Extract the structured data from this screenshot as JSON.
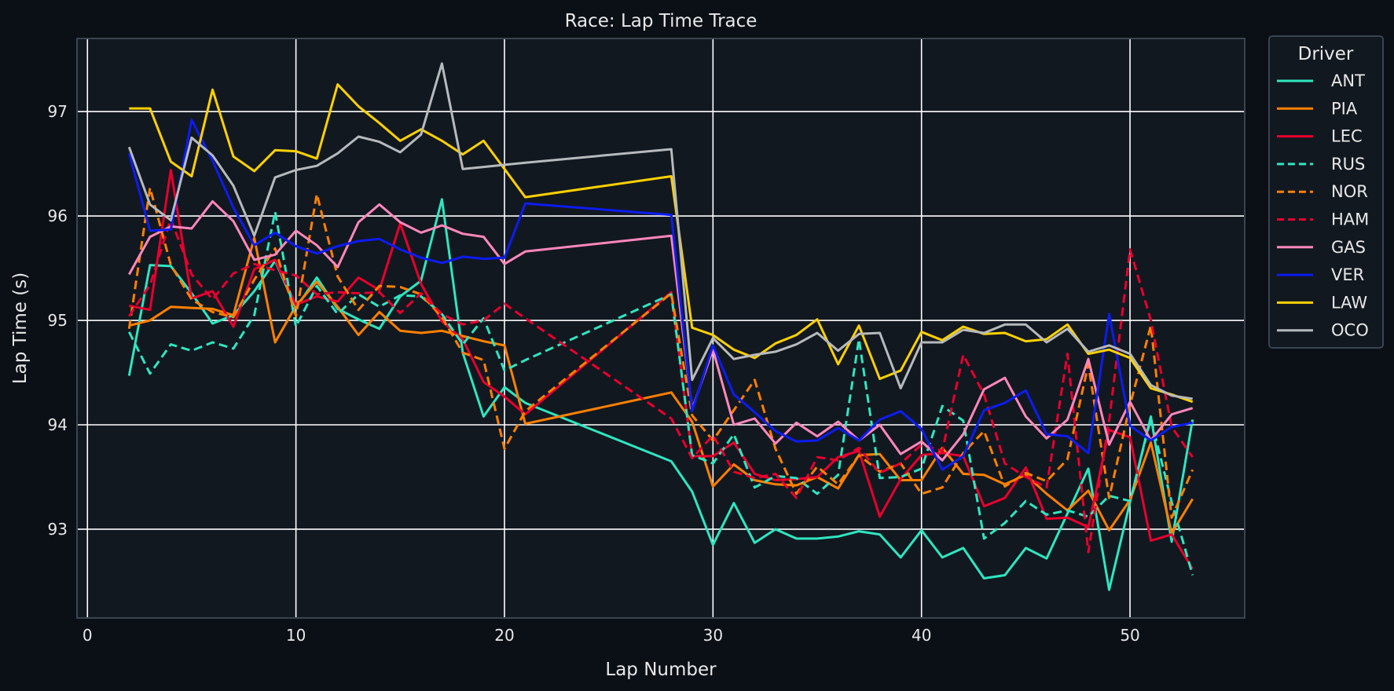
{
  "colors": {
    "background": "#0b0f16",
    "plot_bg": "#121820",
    "frame": "#3a4450",
    "grid": "#ffffff",
    "text": "#e8e8e8"
  },
  "chart_data": {
    "type": "line",
    "title": "Race: Lap Time Trace",
    "xlabel": "Lap Number",
    "ylabel": "Lap Time (s)",
    "xlim": [
      -0.5,
      55.5
    ],
    "ylim": [
      92.15,
      97.7
    ],
    "xticks": [
      0,
      10,
      20,
      30,
      40,
      50
    ],
    "yticks": [
      93,
      94,
      95,
      96,
      97
    ],
    "grid": true,
    "legend": {
      "title": "Driver",
      "placement": "outside-right-top"
    },
    "series": [
      {
        "name": "ANT",
        "color": "#2ee6c0",
        "dash": false,
        "x": [
          2,
          3,
          4,
          5,
          6,
          7,
          8,
          9,
          10,
          11,
          12,
          13,
          14,
          15,
          16,
          17,
          18,
          19,
          20,
          21,
          28,
          29,
          30,
          31,
          32,
          33,
          34,
          35,
          36,
          37,
          38,
          39,
          40,
          41,
          42,
          43,
          44,
          45,
          46,
          47,
          48,
          49,
          50,
          51,
          52,
          53
        ],
        "y": [
          94.47,
          95.53,
          95.52,
          95.26,
          94.97,
          95.05,
          95.28,
          95.57,
          95.12,
          95.41,
          95.11,
          95.01,
          94.92,
          95.23,
          95.38,
          96.16,
          94.69,
          94.08,
          94.36,
          94.21,
          93.65,
          93.36,
          92.85,
          93.25,
          92.87,
          93.0,
          92.91,
          92.91,
          92.93,
          92.98,
          92.95,
          92.73,
          92.99,
          92.73,
          92.82,
          92.53,
          92.56,
          92.82,
          92.72,
          93.15,
          93.58,
          92.42,
          93.26,
          94.08,
          92.88,
          94.05
        ]
      },
      {
        "name": "PIA",
        "color": "#ff8000",
        "dash": false,
        "x": [
          2,
          3,
          4,
          5,
          6,
          7,
          8,
          9,
          10,
          11,
          12,
          13,
          14,
          15,
          16,
          17,
          18,
          19,
          20,
          21,
          28,
          29,
          30,
          31,
          32,
          33,
          34,
          35,
          36,
          37,
          38,
          39,
          40,
          41,
          42,
          43,
          44,
          45,
          46,
          47,
          48,
          49,
          50,
          51,
          52,
          53
        ],
        "y": [
          94.95,
          95.0,
          95.13,
          95.12,
          95.11,
          95.05,
          95.79,
          94.79,
          95.14,
          95.37,
          95.13,
          94.86,
          95.08,
          94.9,
          94.88,
          94.9,
          94.85,
          94.8,
          94.76,
          94.01,
          94.31,
          94.03,
          93.41,
          93.62,
          93.47,
          93.43,
          93.42,
          93.5,
          93.39,
          93.71,
          93.72,
          93.47,
          93.47,
          93.78,
          93.53,
          93.52,
          93.43,
          93.52,
          93.34,
          93.18,
          93.37,
          92.99,
          93.28,
          93.83,
          92.96,
          93.29
        ]
      },
      {
        "name": "LEC",
        "color": "#e8002d",
        "dash": false,
        "x": [
          2,
          3,
          4,
          5,
          6,
          7,
          8,
          9,
          10,
          11,
          12,
          13,
          14,
          15,
          16,
          17,
          18,
          19,
          20,
          21,
          28,
          29,
          30,
          31,
          32,
          33,
          34,
          35,
          36,
          37,
          38,
          39,
          40,
          41,
          42,
          43,
          44,
          45,
          46,
          47,
          48,
          49,
          50,
          51,
          52,
          53
        ],
        "y": [
          95.14,
          95.1,
          96.44,
          95.21,
          95.28,
          94.94,
          95.49,
          95.58,
          95.15,
          95.23,
          95.18,
          95.41,
          95.29,
          95.93,
          95.35,
          94.99,
          94.82,
          94.41,
          94.27,
          94.1,
          95.27,
          93.7,
          93.7,
          93.83,
          93.53,
          93.47,
          93.48,
          93.5,
          93.69,
          93.75,
          93.12,
          93.48,
          93.71,
          93.73,
          93.7,
          93.22,
          93.3,
          93.59,
          93.1,
          93.11,
          93.02,
          93.95,
          93.88,
          92.89,
          92.95,
          92.62
        ]
      },
      {
        "name": "RUS",
        "color": "#2ee6c0",
        "dash": true,
        "x": [
          2,
          3,
          4,
          5,
          6,
          7,
          8,
          9,
          10,
          11,
          12,
          13,
          14,
          15,
          16,
          17,
          18,
          19,
          20,
          21,
          28,
          29,
          30,
          31,
          32,
          33,
          34,
          35,
          36,
          37,
          38,
          39,
          40,
          41,
          42,
          43,
          44,
          45,
          46,
          47,
          48,
          49,
          50,
          51,
          52,
          53
        ],
        "y": [
          94.89,
          94.49,
          94.77,
          94.71,
          94.79,
          94.73,
          95.05,
          96.04,
          94.94,
          95.33,
          95.06,
          95.25,
          95.13,
          95.24,
          95.23,
          95.06,
          94.77,
          95.02,
          94.52,
          94.62,
          95.25,
          93.71,
          93.63,
          93.91,
          93.4,
          93.51,
          93.49,
          93.34,
          93.52,
          94.82,
          93.49,
          93.5,
          93.58,
          94.18,
          94.04,
          92.91,
          93.06,
          93.27,
          93.14,
          93.18,
          93.12,
          93.32,
          93.27,
          94.06,
          93.26,
          92.56
        ]
      },
      {
        "name": "NOR",
        "color": "#ff8000",
        "dash": true,
        "x": [
          2,
          3,
          4,
          5,
          6,
          7,
          8,
          9,
          10,
          11,
          12,
          13,
          14,
          15,
          16,
          17,
          18,
          19,
          20,
          21,
          28,
          29,
          30,
          31,
          32,
          33,
          34,
          35,
          36,
          37,
          38,
          39,
          40,
          41,
          42,
          43,
          44,
          45,
          46,
          47,
          48,
          49,
          50,
          51,
          52,
          53
        ],
        "y": [
          94.92,
          96.27,
          95.53,
          95.2,
          95.08,
          95.03,
          95.39,
          95.69,
          95.04,
          96.21,
          95.42,
          95.1,
          95.33,
          95.32,
          95.25,
          95.03,
          94.69,
          94.62,
          93.77,
          94.13,
          95.26,
          94.09,
          93.85,
          94.14,
          94.43,
          93.77,
          93.34,
          93.6,
          93.43,
          93.71,
          93.55,
          93.63,
          93.34,
          93.4,
          93.73,
          93.94,
          93.41,
          93.54,
          93.46,
          93.67,
          94.58,
          93.3,
          94.19,
          94.95,
          93.11,
          93.57
        ]
      },
      {
        "name": "HAM",
        "color": "#e8002d",
        "dash": true,
        "x": [
          2,
          3,
          4,
          5,
          6,
          7,
          8,
          9,
          10,
          11,
          12,
          13,
          14,
          15,
          16,
          17,
          18,
          19,
          20,
          21,
          28,
          29,
          30,
          31,
          32,
          33,
          34,
          35,
          36,
          37,
          38,
          39,
          40,
          41,
          42,
          43,
          44,
          45,
          46,
          47,
          48,
          49,
          50,
          51,
          52,
          53
        ],
        "y": [
          95.04,
          95.34,
          95.97,
          95.44,
          95.2,
          95.45,
          95.54,
          95.48,
          95.43,
          95.25,
          95.27,
          95.26,
          95.27,
          95.07,
          95.26,
          95.06,
          94.96,
          95.0,
          95.16,
          95.02,
          94.06,
          93.68,
          93.9,
          93.55,
          93.49,
          93.53,
          93.3,
          93.69,
          93.66,
          93.78,
          93.54,
          93.63,
          93.81,
          93.75,
          94.67,
          94.29,
          93.63,
          93.5,
          93.4,
          94.68,
          92.78,
          94.04,
          95.68,
          95.0,
          93.98,
          93.69
        ]
      },
      {
        "name": "GAS",
        "color": "#ff87bc",
        "dash": false,
        "x": [
          2,
          3,
          4,
          5,
          6,
          7,
          8,
          9,
          10,
          11,
          12,
          13,
          14,
          15,
          16,
          17,
          18,
          19,
          20,
          21,
          28,
          29,
          30,
          31,
          32,
          33,
          34,
          35,
          36,
          37,
          38,
          39,
          40,
          41,
          42,
          43,
          44,
          45,
          46,
          47,
          48,
          49,
          50,
          51,
          52,
          53
        ],
        "y": [
          95.44,
          95.8,
          95.9,
          95.88,
          96.14,
          95.95,
          95.58,
          95.63,
          95.86,
          95.72,
          95.51,
          95.94,
          96.11,
          95.94,
          95.84,
          95.91,
          95.83,
          95.8,
          95.54,
          95.66,
          95.81,
          94.15,
          94.72,
          94.0,
          94.06,
          93.82,
          94.02,
          93.89,
          94.03,
          93.85,
          94.0,
          93.72,
          93.84,
          93.66,
          93.91,
          94.34,
          94.45,
          94.08,
          93.87,
          94.05,
          94.63,
          93.81,
          94.22,
          93.85,
          94.1,
          94.16
        ]
      },
      {
        "name": "VER",
        "color": "#0c1cf0",
        "dash": false,
        "x": [
          2,
          3,
          4,
          5,
          6,
          7,
          8,
          9,
          10,
          11,
          12,
          13,
          14,
          15,
          16,
          17,
          18,
          19,
          20,
          21,
          28,
          29,
          30,
          31,
          32,
          33,
          34,
          35,
          36,
          37,
          38,
          39,
          40,
          41,
          42,
          43,
          44,
          45,
          46,
          47,
          48,
          49,
          50,
          51,
          52,
          53
        ],
        "y": [
          96.6,
          95.86,
          95.87,
          96.92,
          96.53,
          96.08,
          95.72,
          95.84,
          95.71,
          95.64,
          95.71,
          95.76,
          95.78,
          95.68,
          95.6,
          95.55,
          95.61,
          95.59,
          95.6,
          96.12,
          96.01,
          94.13,
          94.76,
          94.29,
          94.12,
          93.94,
          93.84,
          93.85,
          93.97,
          93.85,
          94.05,
          94.13,
          93.96,
          93.57,
          93.7,
          94.14,
          94.21,
          94.33,
          93.91,
          93.89,
          93.73,
          95.06,
          93.99,
          93.85,
          93.98,
          94.02
        ]
      },
      {
        "name": "LAW",
        "color": "#ffd100",
        "dash": false,
        "x": [
          2,
          3,
          4,
          5,
          6,
          7,
          8,
          9,
          10,
          11,
          12,
          13,
          14,
          15,
          16,
          17,
          18,
          19,
          20,
          21,
          28,
          29,
          30,
          31,
          32,
          33,
          34,
          35,
          36,
          37,
          38,
          39,
          40,
          41,
          42,
          43,
          44,
          45,
          46,
          47,
          48,
          49,
          50,
          51,
          52,
          53
        ],
        "y": [
          97.03,
          97.03,
          96.52,
          96.38,
          97.21,
          96.57,
          96.43,
          96.63,
          96.62,
          96.55,
          97.26,
          97.05,
          96.89,
          96.72,
          96.83,
          96.72,
          96.59,
          96.72,
          96.45,
          96.18,
          96.38,
          94.93,
          94.86,
          94.72,
          94.64,
          94.78,
          94.86,
          95.01,
          94.58,
          94.95,
          94.44,
          94.52,
          94.89,
          94.81,
          94.94,
          94.87,
          94.88,
          94.8,
          94.82,
          94.96,
          94.68,
          94.72,
          94.64,
          94.35,
          94.29,
          94.22
        ]
      },
      {
        "name": "OCO",
        "color": "#b6babd",
        "dash": false,
        "x": [
          2,
          3,
          4,
          5,
          6,
          7,
          8,
          9,
          10,
          11,
          12,
          13,
          14,
          15,
          16,
          17,
          18,
          19,
          20,
          21,
          28,
          29,
          30,
          31,
          32,
          33,
          34,
          35,
          36,
          37,
          38,
          39,
          40,
          41,
          42,
          43,
          44,
          45,
          46,
          47,
          48,
          49,
          50,
          51,
          52,
          53
        ],
        "y": [
          96.66,
          96.11,
          95.96,
          96.75,
          96.58,
          96.29,
          95.81,
          96.37,
          96.44,
          96.48,
          96.6,
          96.76,
          96.71,
          96.61,
          96.78,
          97.46,
          96.45,
          96.47,
          96.49,
          96.51,
          96.64,
          94.43,
          94.83,
          94.63,
          94.67,
          94.7,
          94.77,
          94.88,
          94.71,
          94.87,
          94.88,
          94.35,
          94.79,
          94.79,
          94.91,
          94.88,
          94.96,
          94.96,
          94.79,
          94.92,
          94.7,
          94.76,
          94.68,
          94.38,
          94.28,
          94.25
        ]
      }
    ]
  }
}
